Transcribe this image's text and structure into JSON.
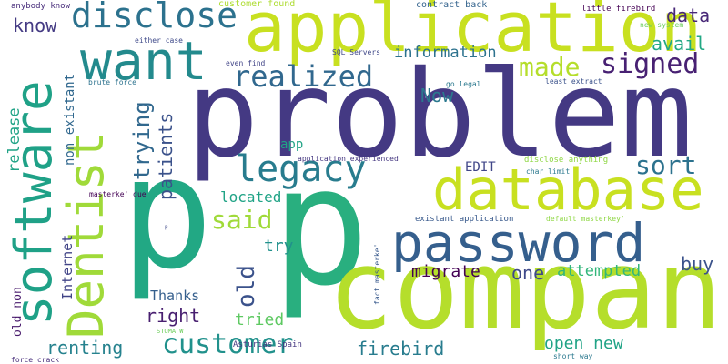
{
  "words": [
    {
      "id": "problem",
      "text": "problem",
      "color": "#443983",
      "vertical": false
    },
    {
      "id": "p-large",
      "text": "p",
      "color": "#22a884",
      "vertical": false
    },
    {
      "id": "p-medium",
      "text": "p",
      "color": "#29af7f",
      "vertical": false
    },
    {
      "id": "company",
      "text": "company",
      "color": "#b5de2b",
      "vertical": false
    },
    {
      "id": "application",
      "text": "application",
      "color": "#c8e020",
      "vertical": false
    },
    {
      "id": "database",
      "text": "database",
      "color": "#c8e020",
      "vertical": false
    },
    {
      "id": "password",
      "text": "password",
      "color": "#355f8d",
      "vertical": false
    },
    {
      "id": "software",
      "text": "software",
      "color": "#1fa187",
      "vertical": true
    },
    {
      "id": "dentist",
      "text": "Dentist",
      "color": "#a0da39",
      "vertical": true
    },
    {
      "id": "want",
      "text": "want",
      "color": "#238a8d",
      "vertical": false
    },
    {
      "id": "disclose",
      "text": "disclose",
      "color": "#2c728e",
      "vertical": false
    },
    {
      "id": "legacy",
      "text": "legacy",
      "color": "#287c8e",
      "vertical": false
    },
    {
      "id": "customer",
      "text": "customer",
      "color": "#21918c",
      "vertical": false
    },
    {
      "id": "realized",
      "text": "realized",
      "color": "#31688e",
      "vertical": false
    },
    {
      "id": "signed",
      "text": "signed",
      "color": "#482173",
      "vertical": false
    },
    {
      "id": "made",
      "text": "made",
      "color": "#b5de2b",
      "vertical": false
    },
    {
      "id": "sort",
      "text": "sort",
      "color": "#2c728e",
      "vertical": false
    },
    {
      "id": "said",
      "text": "said",
      "color": "#a0da39",
      "vertical": false
    },
    {
      "id": "old-1",
      "text": "old",
      "color": "#3b528b",
      "vertical": true
    },
    {
      "id": "trying",
      "text": "trying",
      "color": "#31688e",
      "vertical": true
    },
    {
      "id": "patients",
      "text": "patients",
      "color": "#3b528b",
      "vertical": true
    },
    {
      "id": "data",
      "text": "data",
      "color": "#482878",
      "vertical": false
    },
    {
      "id": "avail",
      "text": "avail",
      "color": "#22a884",
      "vertical": false
    },
    {
      "id": "now",
      "text": "Now",
      "color": "#2a788e",
      "vertical": false
    },
    {
      "id": "information",
      "text": "information",
      "color": "#2c728e",
      "vertical": false
    },
    {
      "id": "know",
      "text": "know",
      "color": "#443a83",
      "vertical": false
    },
    {
      "id": "release",
      "text": "release",
      "color": "#20a386",
      "vertical": true
    },
    {
      "id": "non-existant",
      "text": "non existant",
      "color": "#31688e",
      "vertical": true
    },
    {
      "id": "migrate",
      "text": "migrate",
      "color": "#440154",
      "vertical": false
    },
    {
      "id": "one",
      "text": "one",
      "color": "#3e4989",
      "vertical": false
    },
    {
      "id": "attempted",
      "text": "attempted",
      "color": "#32b67a",
      "vertical": false
    },
    {
      "id": "buy",
      "text": "buy",
      "color": "#3b528b",
      "vertical": false
    },
    {
      "id": "try",
      "text": "try",
      "color": "#21918c",
      "vertical": false
    },
    {
      "id": "right",
      "text": "right",
      "color": "#481f70",
      "vertical": false
    },
    {
      "id": "thanks",
      "text": "Thanks",
      "color": "#355f8d",
      "vertical": false
    },
    {
      "id": "tried",
      "text": "tried",
      "color": "#5ec962",
      "vertical": false
    },
    {
      "id": "renting",
      "text": "renting",
      "color": "#26828e",
      "vertical": false
    },
    {
      "id": "firebird",
      "text": "firebird",
      "color": "#287c8e",
      "vertical": false
    },
    {
      "id": "open-new",
      "text": "open new",
      "color": "#20a386",
      "vertical": false
    },
    {
      "id": "located",
      "text": "located",
      "color": "#20a386",
      "vertical": false
    },
    {
      "id": "internet",
      "text": "Internet",
      "color": "#414487",
      "vertical": true
    },
    {
      "id": "old-non",
      "text": "old non",
      "color": "#481a6c",
      "vertical": true
    },
    {
      "id": "edit",
      "text": "EDIT",
      "color": "#404688",
      "vertical": false
    },
    {
      "id": "app",
      "text": "app",
      "color": "#20a386",
      "vertical": false
    },
    {
      "id": "customer-found",
      "text": "customer found",
      "color": "#addc30",
      "vertical": false
    },
    {
      "id": "contract-back",
      "text": "contract back",
      "color": "#33638d",
      "vertical": false
    },
    {
      "id": "little-firebird",
      "text": "little firebird",
      "color": "#440154",
      "vertical": false
    },
    {
      "id": "anybody-know",
      "text": "anybody know",
      "color": "#472c7a",
      "vertical": false
    },
    {
      "id": "either-case",
      "text": "either case",
      "color": "#3e4989",
      "vertical": false
    },
    {
      "id": "even-find",
      "text": "even find",
      "color": "#414487",
      "vertical": false
    },
    {
      "id": "sql-servers",
      "text": "SQL Servers",
      "color": "#3f4788",
      "vertical": false
    },
    {
      "id": "go-legal",
      "text": "go legal",
      "color": "#2a788e",
      "vertical": false
    },
    {
      "id": "brute-force",
      "text": "brute force",
      "color": "#2c728e",
      "vertical": false
    },
    {
      "id": "least-extract",
      "text": "least extract",
      "color": "#3b528b",
      "vertical": false
    },
    {
      "id": "new-system",
      "text": "new system",
      "color": "#6ccd5a",
      "vertical": false
    },
    {
      "id": "application-experienced",
      "text": "application experienced",
      "color": "#453781",
      "vertical": false
    },
    {
      "id": "disclose-anything",
      "text": "disclose anything",
      "color": "#8fd744",
      "vertical": false
    },
    {
      "id": "char-limit",
      "text": "char limit",
      "color": "#2a788e",
      "vertical": false
    },
    {
      "id": "masterke-due",
      "text": "masterke' due",
      "color": "#440154",
      "vertical": false
    },
    {
      "id": "existant-application",
      "text": "existant application",
      "color": "#38598c",
      "vertical": false
    },
    {
      "id": "default-masterkey",
      "text": "default masterkey'",
      "color": "#8fd744",
      "vertical": false
    },
    {
      "id": "fact-masterke",
      "text": "fact masterke'",
      "color": "#38598c",
      "vertical": true
    },
    {
      "id": "asturias-spain",
      "text": "Asturias Spain",
      "color": "#453781",
      "vertical": false
    },
    {
      "id": "stoma-w",
      "text": "STOMA W",
      "color": "#6ccd5a",
      "vertical": false
    },
    {
      "id": "short-way",
      "text": "short way",
      "color": "#2a788e",
      "vertical": false
    },
    {
      "id": "force-crack",
      "text": "force crack",
      "color": "#472d7b",
      "vertical": false
    },
    {
      "id": "p-tiny",
      "text": "p",
      "color": "#3e4989",
      "vertical": false
    }
  ]
}
